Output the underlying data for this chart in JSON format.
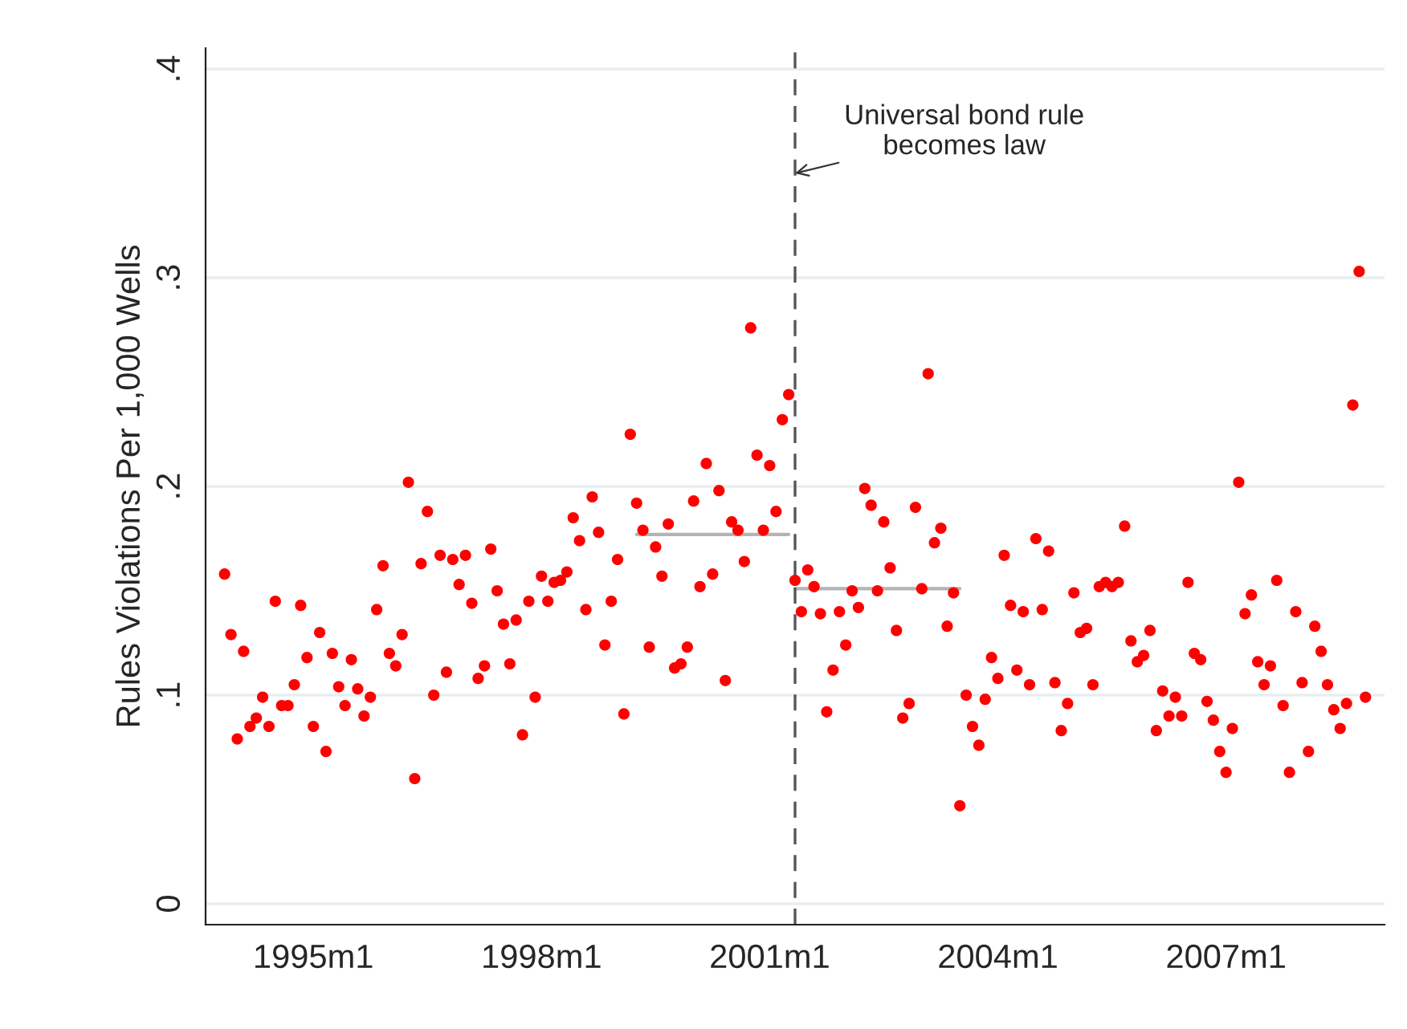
{
  "chart_data": {
    "type": "scatter",
    "ylabel": "Rules Violations Per 1,000 Wells",
    "xlim": [
      "1993-08",
      "2009-02"
    ],
    "xticks": [
      {
        "value": "1995-01",
        "label": "1995m1"
      },
      {
        "value": "1998-01",
        "label": "1998m1"
      },
      {
        "value": "2001-01",
        "label": "2001m1"
      },
      {
        "value": "2004-01",
        "label": "2004m1"
      },
      {
        "value": "2007-01",
        "label": "2007m1"
      }
    ],
    "ylim": [
      -0.01,
      0.41
    ],
    "yticks": [
      {
        "value": 0,
        "label": "0"
      },
      {
        "value": 0.1,
        "label": ".1"
      },
      {
        "value": 0.2,
        "label": ".2"
      },
      {
        "value": 0.3,
        "label": ".3"
      },
      {
        "value": 0.4,
        "label": ".4"
      }
    ],
    "grid": "y",
    "series": [
      {
        "marker": "circle",
        "color": "#ff0000",
        "x": [
          "1993-11",
          "1993-12",
          "1994-01",
          "1994-02",
          "1994-03",
          "1994-04",
          "1994-05",
          "1994-06",
          "1994-07",
          "1994-08",
          "1994-09",
          "1994-10",
          "1994-11",
          "1994-12",
          "1995-01",
          "1995-02",
          "1995-03",
          "1995-04",
          "1995-05",
          "1995-06",
          "1995-07",
          "1995-08",
          "1995-09",
          "1995-10",
          "1995-11",
          "1995-12",
          "1996-01",
          "1996-02",
          "1996-03",
          "1996-04",
          "1996-05",
          "1996-06",
          "1996-07",
          "1996-08",
          "1996-09",
          "1996-10",
          "1996-11",
          "1996-12",
          "1997-01",
          "1997-02",
          "1997-03",
          "1997-04",
          "1997-05",
          "1997-06",
          "1997-07",
          "1997-08",
          "1997-09",
          "1997-10",
          "1997-11",
          "1997-12",
          "1998-01",
          "1998-02",
          "1998-03",
          "1998-04",
          "1998-05",
          "1998-06",
          "1998-07",
          "1998-08",
          "1998-09",
          "1998-10",
          "1998-11",
          "1998-12",
          "1999-01",
          "1999-02",
          "1999-03",
          "1999-04",
          "1999-05",
          "1999-06",
          "1999-07",
          "1999-08",
          "1999-09",
          "1999-10",
          "1999-11",
          "1999-12",
          "2000-01",
          "2000-02",
          "2000-03",
          "2000-04",
          "2000-05",
          "2000-06",
          "2000-07",
          "2000-08",
          "2000-09",
          "2000-10",
          "2000-11",
          "2000-12",
          "2001-01",
          "2001-02",
          "2001-03",
          "2001-04",
          "2001-05",
          "2001-06",
          "2001-07",
          "2001-08",
          "2001-09",
          "2001-10",
          "2001-11",
          "2001-12",
          "2002-01",
          "2002-02",
          "2002-03",
          "2002-04",
          "2002-05",
          "2002-06",
          "2002-07",
          "2002-08",
          "2002-09",
          "2002-10",
          "2002-11",
          "2002-12",
          "2003-01",
          "2003-02",
          "2003-03",
          "2003-04",
          "2003-05",
          "2003-06",
          "2003-07",
          "2003-08",
          "2003-09",
          "2003-10",
          "2003-11",
          "2003-12",
          "2004-01",
          "2004-02",
          "2004-03",
          "2004-04",
          "2004-05",
          "2004-06",
          "2004-07",
          "2004-08",
          "2004-09",
          "2004-10",
          "2004-11",
          "2004-12",
          "2005-01",
          "2005-02",
          "2005-03",
          "2005-04",
          "2005-05",
          "2005-06",
          "2005-07",
          "2005-08",
          "2005-09",
          "2005-10",
          "2005-11",
          "2005-12",
          "2006-01",
          "2006-02",
          "2006-03",
          "2006-04",
          "2006-05",
          "2006-06",
          "2006-07",
          "2006-08",
          "2006-09",
          "2006-10",
          "2006-11",
          "2006-12",
          "2007-01",
          "2007-02",
          "2007-03",
          "2007-04",
          "2007-05",
          "2007-06",
          "2007-07",
          "2007-08",
          "2007-09",
          "2007-10",
          "2007-11",
          "2007-12",
          "2008-01",
          "2008-02",
          "2008-03",
          "2008-04",
          "2008-05",
          "2008-06",
          "2008-07",
          "2008-08",
          "2008-09",
          "2008-10",
          "2008-11"
        ],
        "values": [
          0.158,
          0.129,
          0.079,
          0.121,
          0.085,
          0.089,
          0.099,
          0.085,
          0.145,
          0.095,
          0.095,
          0.105,
          0.143,
          0.118,
          0.085,
          0.13,
          0.073,
          0.12,
          0.104,
          0.095,
          0.117,
          0.103,
          0.09,
          0.099,
          0.141,
          0.162,
          0.12,
          0.114,
          0.129,
          0.202,
          0.06,
          0.163,
          0.188,
          0.1,
          0.167,
          0.111,
          0.165,
          0.153,
          0.167,
          0.144,
          0.108,
          0.114,
          0.17,
          0.15,
          0.134,
          0.115,
          0.136,
          0.081,
          0.145,
          0.099,
          0.157,
          0.145,
          0.154,
          0.155,
          0.159,
          0.185,
          0.174,
          0.141,
          0.195,
          0.178,
          0.124,
          0.145,
          0.165,
          0.091,
          0.225,
          0.192,
          0.179,
          0.123,
          0.171,
          0.157,
          0.182,
          0.113,
          0.115,
          0.123,
          0.193,
          0.152,
          0.211,
          0.158,
          0.198,
          0.107,
          0.183,
          0.179,
          0.164,
          0.276,
          0.215,
          0.179,
          0.21,
          0.188,
          0.232,
          0.244,
          0.155,
          0.14,
          0.16,
          0.152,
          0.139,
          0.092,
          0.112,
          0.14,
          0.124,
          0.15,
          0.142,
          0.199,
          0.191,
          0.15,
          0.183,
          0.161,
          0.131,
          0.089,
          0.096,
          0.19,
          0.151,
          0.254,
          0.173,
          0.18,
          0.133,
          0.149,
          0.047,
          0.1,
          0.085,
          0.076,
          0.098,
          0.118,
          0.108,
          0.167,
          0.143,
          0.112,
          0.14,
          0.105,
          0.175,
          0.141,
          0.169,
          0.106,
          0.083,
          0.096,
          0.149,
          0.13,
          0.132,
          0.105,
          0.152,
          0.154,
          0.152,
          0.154,
          0.181,
          0.126,
          0.116,
          0.119,
          0.131,
          0.083,
          0.102,
          0.09,
          0.099,
          0.09,
          0.154,
          0.12,
          0.117,
          0.097,
          0.088,
          0.073,
          0.063,
          0.084,
          0.202,
          0.139,
          0.148,
          0.116,
          0.105,
          0.114,
          0.155,
          0.095,
          0.063,
          0.14,
          0.106,
          0.073,
          0.133,
          0.121,
          0.105,
          0.093,
          0.084,
          0.096,
          0.239,
          0.303,
          0.099
        ]
      },
      {
        "type": "line",
        "color": "#b4b4b4",
        "x": [
          "1999-04",
          "2001-04"
        ],
        "values": [
          0.177,
          0.177
        ]
      },
      {
        "type": "line",
        "color": "#b4b4b4",
        "x": [
          "2001-05",
          "2003-07"
        ],
        "values": [
          0.151,
          0.151
        ]
      }
    ],
    "ref_lines": [
      {
        "axis": "x",
        "value": "2001-05",
        "color": "#555555",
        "line_style": "dashed"
      }
    ],
    "annotations": [
      {
        "text": "Universal bond rule\nbecomes law",
        "x": "2001-05",
        "y": 0.35
      }
    ]
  }
}
